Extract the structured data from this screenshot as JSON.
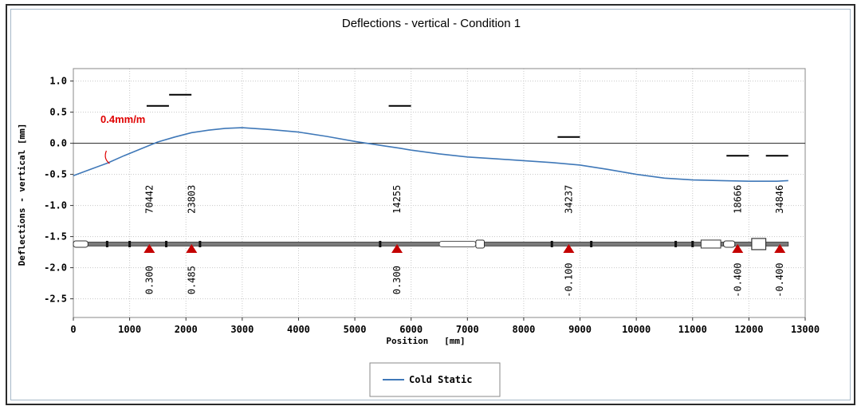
{
  "chart_data": {
    "type": "line",
    "title": "Deflections - vertical - Condition 1",
    "xlabel": "Position   [mm]",
    "ylabel": "Deflections - vertical [mm]",
    "xlim": [
      0,
      13000
    ],
    "ylim": [
      -2.8,
      1.2
    ],
    "xticks": [
      0,
      1000,
      2000,
      3000,
      4000,
      5000,
      6000,
      7000,
      8000,
      9000,
      10000,
      11000,
      12000,
      13000
    ],
    "yticks": [
      1.0,
      0.5,
      0.0,
      -0.5,
      -1.0,
      -1.5,
      -2.0,
      -2.5
    ],
    "ytick_labels": [
      "1.0",
      "0.5",
      "0.0",
      "-0.5",
      "-1.0",
      "-1.5",
      "-2.0",
      "-2.5"
    ],
    "grid": true,
    "series": [
      {
        "name": "Cold Static",
        "color": "#3f78b8",
        "x": [
          0,
          300,
          600,
          900,
          1200,
          1500,
          1800,
          2100,
          2400,
          2700,
          3000,
          3500,
          4000,
          4500,
          5000,
          5500,
          5800,
          6000,
          6500,
          7000,
          7500,
          8000,
          8500,
          9000,
          9500,
          10000,
          10500,
          11000,
          11500,
          12000,
          12500,
          12700
        ],
        "y": [
          -0.52,
          -0.42,
          -0.32,
          -0.2,
          -0.09,
          0.02,
          0.1,
          0.17,
          0.21,
          0.24,
          0.25,
          0.22,
          0.18,
          0.11,
          0.03,
          -0.04,
          -0.08,
          -0.11,
          -0.17,
          -0.22,
          -0.25,
          -0.28,
          -0.31,
          -0.35,
          -0.42,
          -0.5,
          -0.56,
          -0.59,
          -0.6,
          -0.61,
          -0.61,
          -0.6
        ]
      }
    ],
    "legend": {
      "position": "bottom-center",
      "entries": [
        "Cold Static"
      ]
    },
    "target_marks": [
      {
        "x": 1500,
        "value": 0.6
      },
      {
        "x": 1900,
        "value": 0.78
      },
      {
        "x": 5800,
        "value": 0.6
      },
      {
        "x": 8800,
        "value": 0.1
      },
      {
        "x": 11800,
        "value": -0.2
      },
      {
        "x": 12500,
        "value": -0.2
      }
    ],
    "supports": [
      {
        "x": 1350,
        "id": "70442",
        "offset": "0.300"
      },
      {
        "x": 2100,
        "id": "23803",
        "offset": "0.485"
      },
      {
        "x": 5750,
        "id": "14255",
        "offset": "0.300"
      },
      {
        "x": 8800,
        "id": "34237",
        "offset": "-0.100"
      },
      {
        "x": 11800,
        "id": "18666",
        "offset": "-0.400"
      },
      {
        "x": 12550,
        "id": "34846",
        "offset": "-0.400"
      }
    ],
    "shaft_level": -1.62,
    "annotation": {
      "text": "0.4mm/m",
      "color": "#e00000"
    }
  }
}
